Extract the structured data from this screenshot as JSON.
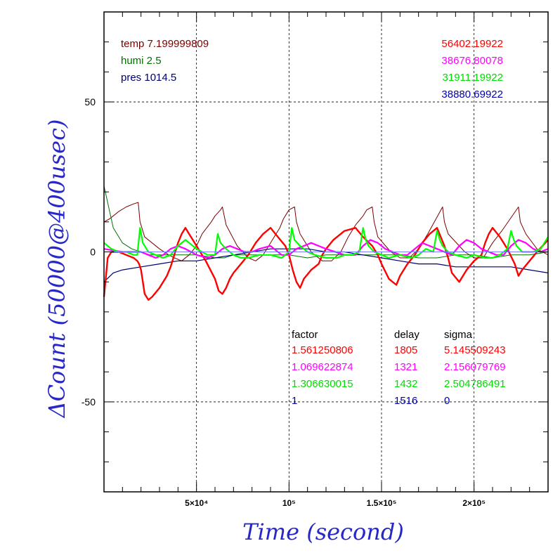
{
  "chart_data": {
    "type": "line",
    "xlabel": "Time (second)",
    "ylabel": "ΔCount (50000@400usec)",
    "xlim": [
      0,
      240000
    ],
    "ylim": [
      -80,
      80
    ],
    "grid": true,
    "colors": {
      "axis_title": "#2828c8",
      "temp": "#7a0000",
      "humi": "#007000",
      "pres": "#000070",
      "red": "#ff0000",
      "magenta": "#ff00ff",
      "green": "#00ff00",
      "blue": "#0000b0",
      "zero_line": "#7a7aff"
    },
    "xticks": [
      {
        "value": 50000,
        "label": "5×10⁴"
      },
      {
        "value": 100000,
        "label": "10⁵"
      },
      {
        "value": 150000,
        "label": "1.5×10⁵"
      },
      {
        "value": 200000,
        "label": "2×10⁵"
      }
    ],
    "yticks": [
      {
        "value": 50,
        "label": "50"
      },
      {
        "value": 0,
        "label": "0"
      },
      {
        "value": -50,
        "label": "-50"
      }
    ],
    "annotations_left": [
      {
        "text": "temp 7.199999809",
        "color": "#7a0000"
      },
      {
        "text": "humi 2.5",
        "color": "#007000"
      },
      {
        "text": "pres 1014.5",
        "color": "#000070"
      }
    ],
    "annotations_right": [
      {
        "text": "56402.19922",
        "color": "#ff0000"
      },
      {
        "text": "38676.80078",
        "color": "#ff00ff"
      },
      {
        "text": "31911.19922",
        "color": "#00dd00"
      },
      {
        "text": "38880.69922",
        "color": "#0000b0"
      }
    ],
    "table": {
      "headers": [
        "factor",
        "delay",
        "sigma"
      ],
      "rows": [
        {
          "factor": "1.561250806",
          "delay": "1805",
          "sigma": "5.145509243",
          "color": "#ff0000"
        },
        {
          "factor": "1.069622874",
          "delay": "1321",
          "sigma": "2.156079769",
          "color": "#ff00ff"
        },
        {
          "factor": "1.306630015",
          "delay": "1432",
          "sigma": "2.504786491",
          "color": "#00dd00"
        },
        {
          "factor": "1",
          "delay": "1516",
          "sigma": "0",
          "color": "#0000b0"
        }
      ]
    },
    "series": [
      {
        "key": "temp",
        "color": "#7a0000",
        "width": 1,
        "x": [
          0,
          3000,
          5000,
          8000,
          12000,
          16000,
          18500,
          19500,
          22000,
          30000,
          35000,
          38000,
          42000,
          46000,
          50000,
          53000,
          58000,
          60000,
          63000,
          64000,
          66000,
          72000,
          78000,
          82000,
          86000,
          90000,
          95000,
          97000,
          100000,
          103000,
          104000,
          106000,
          112000,
          118000,
          123000,
          128000,
          132000,
          136000,
          140000,
          142000,
          145000,
          146000,
          148000,
          155000,
          160000,
          165000,
          170000,
          175000,
          183000,
          184000,
          186000,
          195000,
          200000,
          205000,
          210000,
          215000,
          224000,
          225000,
          228000,
          234000,
          240000
        ],
        "y": [
          10,
          11,
          12,
          13.5,
          15,
          16,
          16.5,
          10,
          5,
          1,
          -1,
          -2,
          -3,
          -1,
          2,
          6,
          10,
          12,
          14,
          15,
          9,
          2,
          -2,
          -3,
          -1,
          3,
          8,
          11,
          14,
          15,
          10,
          6,
          0,
          -3,
          -3,
          0,
          5,
          9,
          12,
          14,
          15,
          10,
          5,
          0,
          -2,
          -2,
          1,
          6,
          15,
          10,
          6,
          0,
          -2,
          -2,
          3,
          7,
          15,
          10,
          6,
          1,
          -1
        ]
      },
      {
        "key": "humi",
        "color": "#007000",
        "width": 1,
        "x": [
          0,
          5000,
          10000,
          15000,
          20000,
          25000,
          30000,
          40000,
          50000,
          60000,
          65000,
          70000,
          80000,
          90000,
          100000,
          110000,
          120000,
          130000,
          140000,
          150000,
          160000,
          170000,
          180000,
          190000,
          200000,
          210000,
          220000,
          230000,
          240000
        ],
        "y": [
          22,
          8,
          3,
          1,
          0,
          -1,
          -1,
          -1,
          -1,
          -2,
          -2,
          -1,
          -1,
          -1,
          -1,
          -2,
          -1,
          -1,
          -1,
          -1,
          -1,
          -2,
          -2,
          -1,
          -1,
          -2,
          -1,
          -1,
          0
        ]
      },
      {
        "key": "pres",
        "color": "#000070",
        "width": 1.2,
        "x": [
          0,
          5000,
          10000,
          20000,
          30000,
          40000,
          50000,
          60000,
          70000,
          80000,
          90000,
          100000,
          110000,
          120000,
          130000,
          140000,
          150000,
          160000,
          170000,
          180000,
          190000,
          200000,
          210000,
          220000,
          230000,
          240000
        ],
        "y": [
          -10,
          -7,
          -6,
          -5,
          -4,
          -3,
          -3,
          -2,
          -1,
          0,
          1,
          1,
          1,
          0,
          0,
          -1,
          -2,
          -3,
          -4,
          -4,
          -5,
          -5,
          -5,
          -5,
          -6,
          -7
        ]
      },
      {
        "key": "red",
        "color": "#ff0000",
        "width": 2.4,
        "x": [
          0,
          2000,
          4000,
          8000,
          12000,
          16000,
          18000,
          19000,
          20000,
          21000,
          22000,
          24000,
          26000,
          30000,
          34000,
          36000,
          38000,
          40000,
          42000,
          44000,
          46000,
          48000,
          50000,
          55000,
          60000,
          62000,
          64000,
          66000,
          68000,
          70000,
          74000,
          78000,
          80000,
          82000,
          86000,
          90000,
          94000,
          98000,
          100000,
          102000,
          104000,
          106000,
          108000,
          112000,
          116000,
          118000,
          120000,
          124000,
          130000,
          136000,
          140000,
          145000,
          148000,
          150000,
          154000,
          158000,
          160000,
          164000,
          168000,
          172000,
          176000,
          180000,
          182000,
          184000,
          186000,
          188000,
          192000,
          196000,
          200000,
          204000,
          206000,
          208000,
          210000,
          214000,
          218000,
          222000,
          224000,
          226000,
          230000,
          234000,
          240000
        ],
        "y": [
          -15,
          -2,
          0,
          0,
          -1,
          -2,
          -3,
          -4,
          -6,
          -10,
          -14,
          -16,
          -15,
          -12,
          -8,
          -5,
          -1,
          3,
          6,
          8,
          6,
          4,
          2,
          -3,
          -9,
          -13,
          -14,
          -12,
          -9,
          -7,
          -4,
          -1,
          1,
          3,
          6,
          8,
          5,
          2,
          -1,
          -6,
          -10,
          -12,
          -9,
          -6,
          -4,
          -1,
          1,
          4,
          7,
          8,
          5,
          2,
          -1,
          -4,
          -9,
          -11,
          -8,
          -4,
          -1,
          3,
          6,
          8,
          5,
          2,
          -2,
          -7,
          -10,
          -6,
          -3,
          -1,
          3,
          6,
          8,
          5,
          1,
          -4,
          -8,
          -6,
          -3,
          0,
          4
        ]
      },
      {
        "key": "magenta",
        "color": "#ff00ff",
        "width": 2.2,
        "x": [
          0,
          10000,
          20000,
          24000,
          28000,
          32000,
          36000,
          40000,
          44000,
          50000,
          56000,
          60000,
          64000,
          68000,
          72000,
          76000,
          80000,
          84000,
          90000,
          96000,
          100000,
          104000,
          108000,
          112000,
          116000,
          120000,
          130000,
          136000,
          140000,
          144000,
          148000,
          152000,
          156000,
          160000,
          164000,
          168000,
          172000,
          176000,
          180000,
          184000,
          188000,
          192000,
          196000,
          200000,
          204000,
          208000,
          212000,
          216000,
          220000,
          224000,
          228000,
          232000,
          236000,
          240000
        ],
        "y": [
          1,
          0,
          0,
          -1,
          -2,
          -1,
          1,
          2,
          1,
          -1,
          -2,
          -1,
          1,
          2,
          1,
          0,
          0,
          1,
          2,
          -1,
          -1,
          1,
          2,
          3,
          2,
          1,
          -1,
          -1,
          2,
          4,
          3,
          1,
          0,
          -1,
          -1,
          1,
          3,
          2,
          1,
          0,
          -1,
          2,
          4,
          3,
          1,
          0,
          -1,
          -1,
          2,
          4,
          3,
          1,
          0,
          1
        ]
      },
      {
        "key": "green",
        "color": "#00ff00",
        "width": 2.2,
        "x": [
          0,
          4000,
          8000,
          12000,
          16000,
          18000,
          19500,
          21000,
          24000,
          28000,
          32000,
          36000,
          40000,
          44000,
          50000,
          56000,
          60000,
          61500,
          63000,
          66000,
          70000,
          74000,
          78000,
          84000,
          90000,
          96000,
          100000,
          101500,
          103000,
          106000,
          110000,
          114000,
          120000,
          126000,
          130000,
          134000,
          138000,
          140000,
          141500,
          143000,
          146000,
          150000,
          154000,
          160000,
          166000,
          170000,
          174000,
          178000,
          180000,
          181500,
          183000,
          186000,
          190000,
          196000,
          200000,
          206000,
          210000,
          214000,
          218000,
          220000,
          221500,
          223000,
          226000,
          232000,
          236000,
          240000
        ],
        "y": [
          3,
          1,
          0,
          0,
          -1,
          -1,
          8,
          3,
          0,
          -1,
          -2,
          -1,
          2,
          4,
          1,
          -1,
          -1,
          6,
          3,
          1,
          -1,
          -2,
          -2,
          -1,
          -1,
          -2,
          0,
          8,
          4,
          2,
          0,
          -1,
          -2,
          -2,
          -1,
          -1,
          0,
          8,
          4,
          2,
          0,
          -1,
          -2,
          -1,
          -2,
          -1,
          1,
          0,
          7,
          4,
          2,
          0,
          -1,
          -2,
          -1,
          -2,
          -2,
          -1,
          1,
          7,
          4,
          2,
          0,
          0,
          1,
          5
        ]
      },
      {
        "key": "zero",
        "color": "#7a7aff",
        "width": 1,
        "x": [
          0,
          240000
        ],
        "y": [
          0,
          0
        ]
      }
    ]
  }
}
